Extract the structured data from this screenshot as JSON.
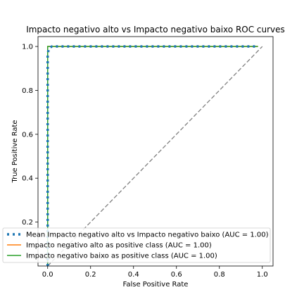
{
  "chart_data": {
    "type": "line",
    "title": "Impacto negativo alto vs Impacto negativo baixo ROC curves",
    "xlabel": "False Positive Rate",
    "ylabel": "True Positive Rate",
    "xlim": [
      -0.045,
      1.05
    ],
    "ylim": [
      0.0,
      1.045
    ],
    "xticks": [
      0.0,
      0.2,
      0.4,
      0.6,
      0.8,
      1.0
    ],
    "xtick_labels": [
      "0.0",
      "0.2",
      "0.4",
      "0.6",
      "0.8",
      "1.0"
    ],
    "yticks": [
      0.2,
      0.4,
      0.6,
      0.8,
      1.0
    ],
    "ytick_labels": [
      "0.2",
      "0.4",
      "0.6",
      "0.8",
      "1.0"
    ],
    "grid": false,
    "legend_position": "lower-left",
    "series": [
      {
        "name": "Mean Impacto negativo alto vs Impacto negativo baixo (AUC = 1.00)",
        "color": "#1f77b4",
        "style": "dotted",
        "x": [
          0.0,
          0.0,
          0.004,
          0.01,
          0.02,
          0.05,
          0.1,
          0.2,
          0.4,
          0.6,
          0.8,
          0.98
        ],
        "y": [
          0.0,
          0.96,
          0.985,
          0.995,
          1.0,
          1.0,
          1.0,
          1.0,
          1.0,
          1.0,
          1.0,
          1.0
        ]
      },
      {
        "name": "Impacto negativo alto as positive class (AUC = 1.00)",
        "color": "#ff7f0e",
        "style": "solid",
        "x": [
          0.0,
          0.0,
          0.98
        ],
        "y": [
          0.0,
          1.0,
          1.0
        ]
      },
      {
        "name": "Impacto negativo baixo as positive class (AUC = 1.00)",
        "color": "#2ca02c",
        "style": "solid",
        "x": [
          0.0,
          0.0,
          0.98
        ],
        "y": [
          0.0,
          1.0,
          1.0
        ]
      }
    ],
    "reference_line": {
      "color": "#808080",
      "style": "dashed",
      "x": [
        0.0,
        1.0
      ],
      "y": [
        0.0,
        1.0
      ]
    }
  }
}
